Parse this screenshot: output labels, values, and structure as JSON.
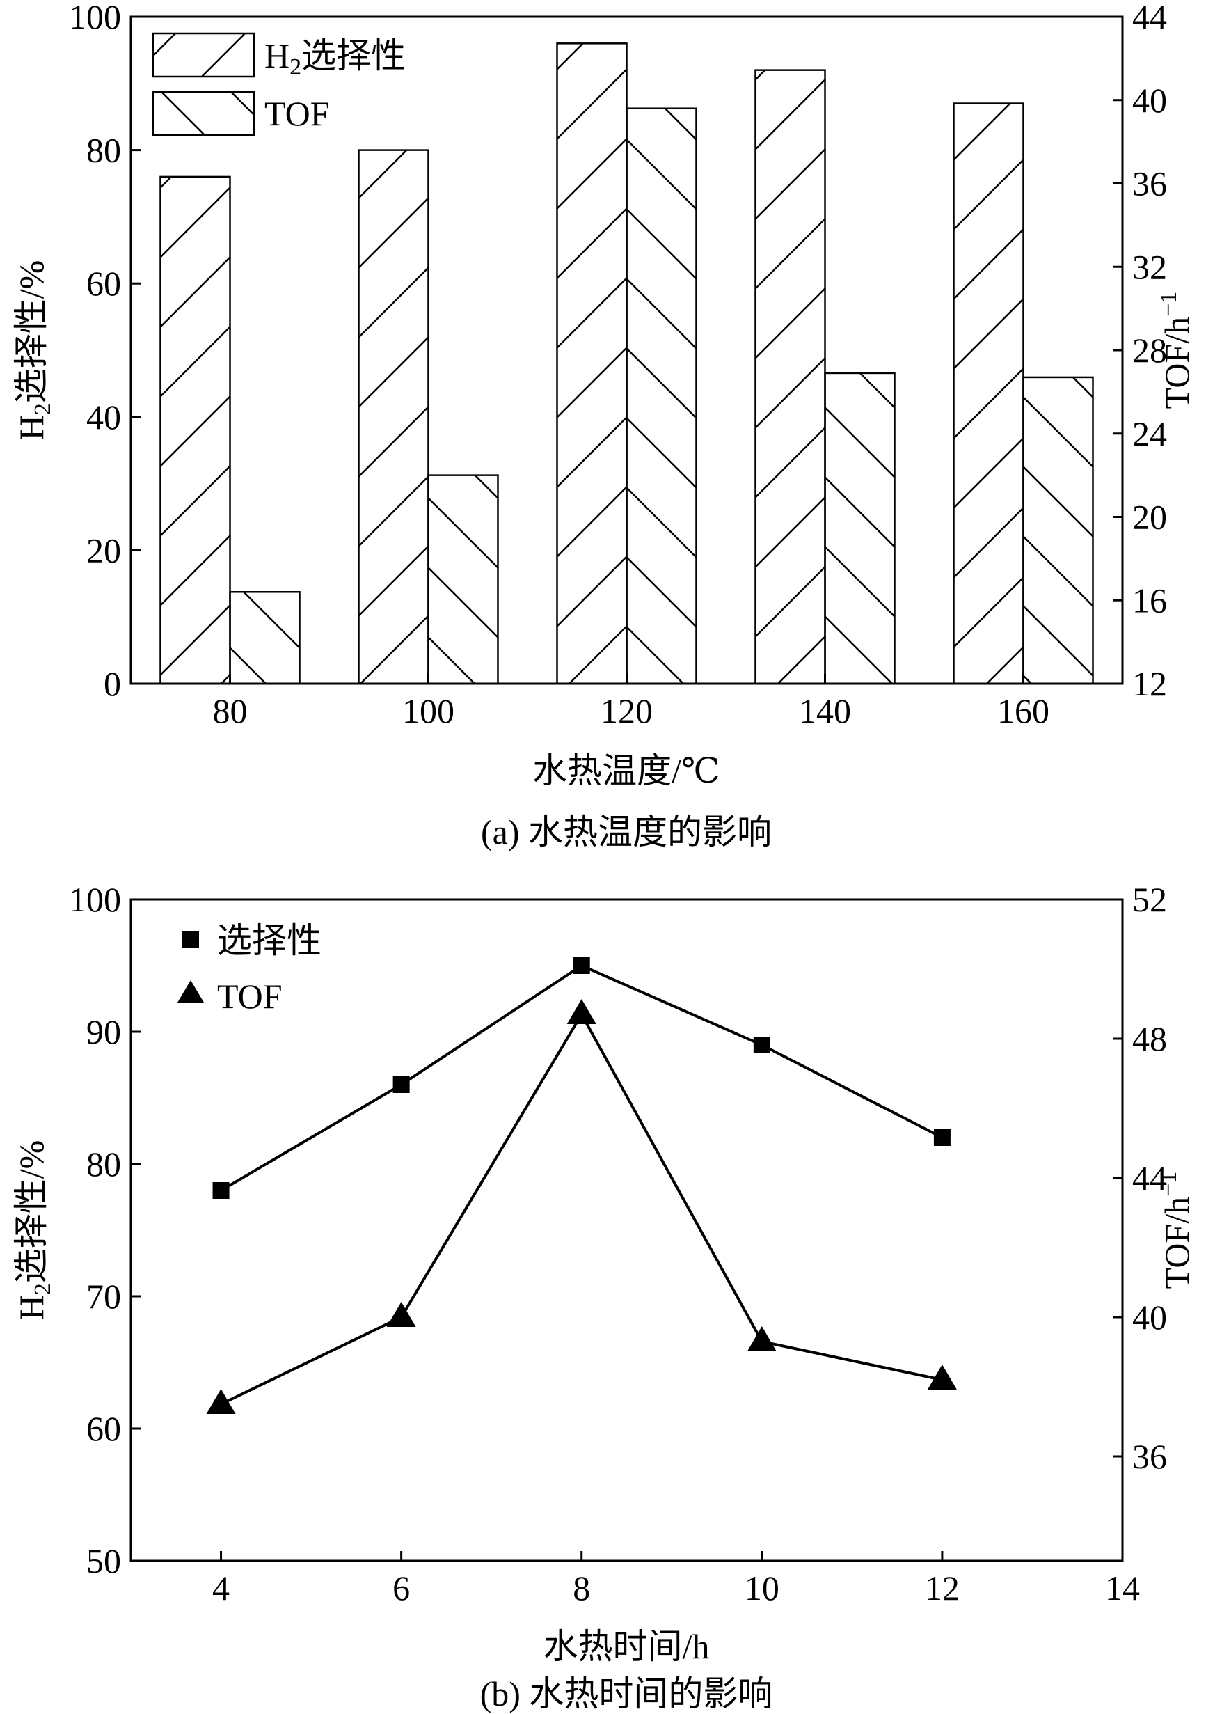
{
  "chart_data": [
    {
      "type": "bar",
      "caption": "(a) 水热温度的影响",
      "xlabel": "水热温度/℃",
      "ylabel": {
        "prefix": "H",
        "sub": "2",
        "suffix": "选择性/%"
      },
      "y2label": {
        "prefix": "TOF/h",
        "sup": "−1"
      },
      "categories": [
        "80",
        "100",
        "120",
        "140",
        "160"
      ],
      "ylim": [
        0,
        100
      ],
      "y2lim": [
        12,
        44
      ],
      "yticks": [
        "0",
        "20",
        "40",
        "60",
        "80",
        "100"
      ],
      "y2ticks": [
        "12",
        "16",
        "20",
        "24",
        "28",
        "32",
        "36",
        "40",
        "44"
      ],
      "series": [
        {
          "name": {
            "prefix": "H",
            "sub": "2",
            "suffix": "选择性"
          },
          "axis": "left",
          "hatch": "forward",
          "values": [
            76,
            80,
            96,
            92,
            87
          ]
        },
        {
          "name": {
            "prefix": "TOF"
          },
          "axis": "right",
          "hatch": "backward",
          "values": [
            16.4,
            22,
            39.6,
            26.9,
            26.7
          ]
        }
      ],
      "legend_position": "top-left",
      "grid": false
    },
    {
      "type": "line",
      "caption": "(b) 水热时间的影响",
      "xlabel": "水热时间/h",
      "ylabel": {
        "prefix": "H",
        "sub": "2",
        "suffix": "选择性/%"
      },
      "y2label": {
        "prefix": "TOF/h",
        "sup": "−1"
      },
      "x": [
        4,
        6,
        8,
        10,
        12
      ],
      "xlim": [
        3,
        14
      ],
      "xticks": [
        "4",
        "6",
        "8",
        "10",
        "12",
        "14"
      ],
      "ylim": [
        50,
        100
      ],
      "y2lim": [
        33,
        52
      ],
      "yticks": [
        "50",
        "60",
        "70",
        "80",
        "90",
        "100"
      ],
      "y2ticks": [
        "36",
        "40",
        "44",
        "48",
        "52"
      ],
      "series": [
        {
          "name": {
            "prefix": "选择性"
          },
          "axis": "left",
          "marker": "square",
          "values": [
            78,
            86,
            95,
            89,
            82
          ]
        },
        {
          "name": {
            "prefix": "TOF"
          },
          "axis": "right",
          "marker": "triangle",
          "values": [
            37.5,
            40,
            48.7,
            39.3,
            38.2
          ]
        }
      ],
      "legend_position": "top-left",
      "grid": false
    }
  ]
}
